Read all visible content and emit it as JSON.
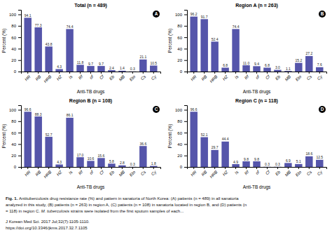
{
  "chart_data": [
    {
      "type": "bar",
      "title": "Total (n = 489)",
      "xlabel": "Anti-TB drugs",
      "ylabel": "Percent (%)",
      "categories": [
        "HR",
        "RB",
        "HRB",
        "HZ",
        "Is",
        "Rf",
        "of",
        "Cf",
        "Eb",
        "MB",
        "Eto",
        "Cs",
        "Cy"
      ],
      "values": [
        94.1,
        77.3,
        43.8,
        4.3,
        74.4,
        11.8,
        9.7,
        9.7,
        2.4,
        1.4,
        0.3,
        21.1,
        10.5
      ],
      "value_labels": [
        "94.1",
        "77.3",
        "43.8",
        "4.3",
        "74.4",
        "11.8",
        "9.7",
        "9.7",
        "2.4",
        "1.4",
        "0.3",
        "21.1",
        "10.5"
      ],
      "color": "#5555aa",
      "ylim": [
        0,
        108
      ],
      "yticks": [
        0,
        20,
        40,
        60,
        80,
        100
      ],
      "grid": false,
      "data_labels": true,
      "annotations": [
        "A"
      ]
    },
    {
      "type": "bar",
      "title": "Region A (n = 263)",
      "xlabel": "Anti-TB drugs",
      "ylabel": "Percent (%)",
      "categories": [
        "HR",
        "RB",
        "HRB",
        "HZ",
        "Is",
        "Rf",
        "of",
        "Cf",
        "Eb",
        "MB",
        "Eto",
        "Cs",
        "Cy"
      ],
      "values": [
        96.2,
        91.7,
        52.4,
        6.8,
        74.4,
        11.0,
        9.4,
        6.8,
        3.0,
        1.1,
        15.2,
        27.2,
        7.6
      ],
      "value_labels": [
        "96.2",
        "91.7",
        "52.4",
        "6.8",
        "74.4",
        "11.0",
        "9.4",
        "6.8",
        "3.0",
        "1.1",
        "15.2",
        "27.2",
        "7.6"
      ],
      "color": "#5555aa",
      "ylim": [
        0,
        108
      ],
      "yticks": [
        0,
        20,
        40,
        60,
        80,
        100
      ],
      "grid": false,
      "data_labels": true,
      "annotations": [
        "B"
      ]
    },
    {
      "type": "bar",
      "title": "Region B (n = 108)",
      "xlabel": "Anti-TB drugs",
      "ylabel": "Percent (%)",
      "categories": [
        "HR",
        "RB",
        "HRB",
        "HZ",
        "Is",
        "Rf",
        "of",
        "Cf",
        "Eb",
        "MB",
        "Eto",
        "Cs",
        "Cy"
      ],
      "values": [
        96.6,
        88.3,
        52.7,
        4.3,
        86.1,
        17.0,
        10.6,
        15.6,
        5.8,
        2.8,
        0.3,
        36.6,
        1.8
      ],
      "value_labels": [
        "96.6",
        "88.3",
        "52.7",
        "4.3",
        "86.1",
        "17.0",
        "10.6",
        "15.6",
        "5.8",
        "2.8",
        "0.3",
        "36.6",
        "1.8"
      ],
      "color": "#5555aa",
      "ylim": [
        0,
        108
      ],
      "yticks": [
        0,
        20,
        40,
        60,
        80,
        100
      ],
      "grid": false,
      "data_labels": true,
      "annotations": [
        "C"
      ]
    },
    {
      "type": "bar",
      "title": "Region C (n = 118)",
      "xlabel": "Anti-TB drugs",
      "ylabel": "Percent (%)",
      "categories": [
        "HR",
        "RB",
        "HRB",
        "HZ",
        "Is",
        "Rf",
        "of",
        "Cf",
        "Eb",
        "MB",
        "Eto",
        "Cs",
        "Cy"
      ],
      "values": [
        96.6,
        52.1,
        29.7,
        44.4,
        4.9,
        9.8,
        9.8,
        0.3,
        0.3,
        6.9,
        5.1,
        18.6,
        12.5
      ],
      "value_labels": [
        "96.6",
        "52.1",
        "29.7",
        "44.4",
        "4.9",
        "9.8",
        "9.8",
        "0.3",
        "0.3",
        "6.9",
        "5.1",
        "18.6",
        "12.5"
      ],
      "color": "#5555aa",
      "ylim": [
        0,
        108
      ],
      "yticks": [
        0,
        20,
        40,
        60,
        80,
        100
      ],
      "grid": false,
      "data_labels": true,
      "annotations": [
        "D"
      ]
    }
  ],
  "annotations": [
    "Fig. 1.",
    "Antituberculosis drug resistance rate (%) and pattern in sanatoria of North Korea: (A) patients (n = 489) in all sanatoria",
    "analyzed in this study, (B) patients (n = 263) in region A, (C) patients (n = 108) in sanatoria located in region B, and (D) patients (n",
    "= 118) in region C.",
    "M. tuberculosis",
    "strains were isolated from the first sputum samples of each...",
    "J Korean Med Sci. 2017 Jul;32(7):1105-1110.",
    "https://doi.org/10.3346/jkms.2017.32.7.1105"
  ]
}
